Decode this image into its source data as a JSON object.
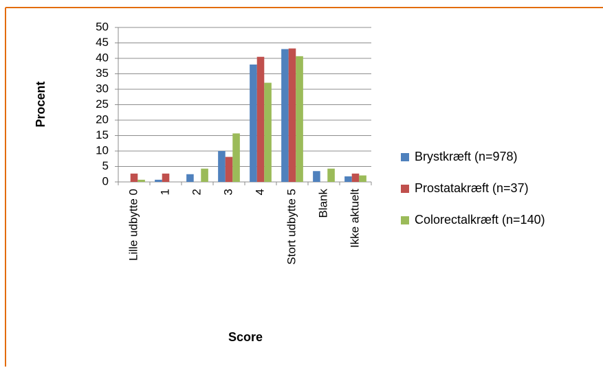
{
  "chart_data": {
    "type": "bar",
    "x_label": "Score",
    "y_label": "Procent",
    "categories": [
      "Lille udbytte 0",
      "1",
      "2",
      "3",
      "4",
      "Stort udbytte 5",
      "Blank",
      "Ikke aktuelt"
    ],
    "series": [
      {
        "name": "Brystkræft (n=978)",
        "color": "#4f81bd",
        "values": [
          0,
          0.7,
          2.5,
          10,
          38,
          43,
          3.5,
          1.8
        ]
      },
      {
        "name": "Prostatakræft (n=37)",
        "color": "#c0504d",
        "values": [
          2.7,
          2.7,
          0,
          8.1,
          40.5,
          43.2,
          0,
          2.7
        ]
      },
      {
        "name": "Colorectalkræft (n=140)",
        "color": "#9bbb59",
        "values": [
          0.7,
          0,
          4.3,
          15.7,
          32.1,
          40.7,
          4.3,
          2.1
        ]
      }
    ],
    "ylim": [
      0,
      50
    ],
    "yticks": [
      0,
      5,
      10,
      15,
      20,
      25,
      30,
      35,
      40,
      45,
      50
    ],
    "grid": true,
    "legend": "right"
  }
}
